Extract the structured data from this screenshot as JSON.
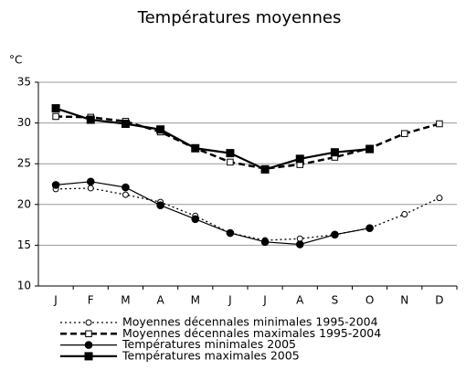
{
  "chart_data": {
    "type": "line",
    "title": "Températures moyennes",
    "y_label": "°C",
    "categories": [
      "J",
      "F",
      "M",
      "A",
      "M",
      "J",
      "J",
      "A",
      "S",
      "O",
      "N",
      "D"
    ],
    "ylim": [
      10,
      35
    ],
    "yticks": [
      10,
      15,
      20,
      25,
      30,
      35
    ],
    "grid": true,
    "series": [
      {
        "name": "Moyennes décennales minimales 1995-2004",
        "color": "#000000",
        "dash": "dotted",
        "marker": "circle-open",
        "values": [
          21.9,
          22.0,
          21.2,
          20.3,
          18.6,
          16.5,
          15.6,
          15.8,
          16.3,
          17.1,
          18.8,
          20.8
        ]
      },
      {
        "name": "Moyennes décennales maximales 1995-2004",
        "color": "#000000",
        "dash": "dashed",
        "marker": "square-open",
        "values": [
          30.8,
          30.7,
          30.2,
          28.9,
          26.9,
          25.2,
          24.4,
          24.9,
          25.8,
          26.9,
          28.7,
          29.9
        ]
      },
      {
        "name": "Températures minimales 2005",
        "color": "#000000",
        "dash": "solid",
        "marker": "circle-filled",
        "values": [
          22.4,
          22.8,
          22.1,
          19.9,
          18.2,
          16.5,
          15.4,
          15.1,
          16.3,
          17.1,
          null,
          null
        ]
      },
      {
        "name": "Températures maximales 2005",
        "color": "#000000",
        "dash": "solid",
        "marker": "square-filled",
        "values": [
          31.8,
          30.4,
          29.9,
          29.2,
          26.9,
          26.3,
          24.3,
          25.6,
          26.4,
          26.8,
          null,
          null
        ]
      }
    ]
  }
}
